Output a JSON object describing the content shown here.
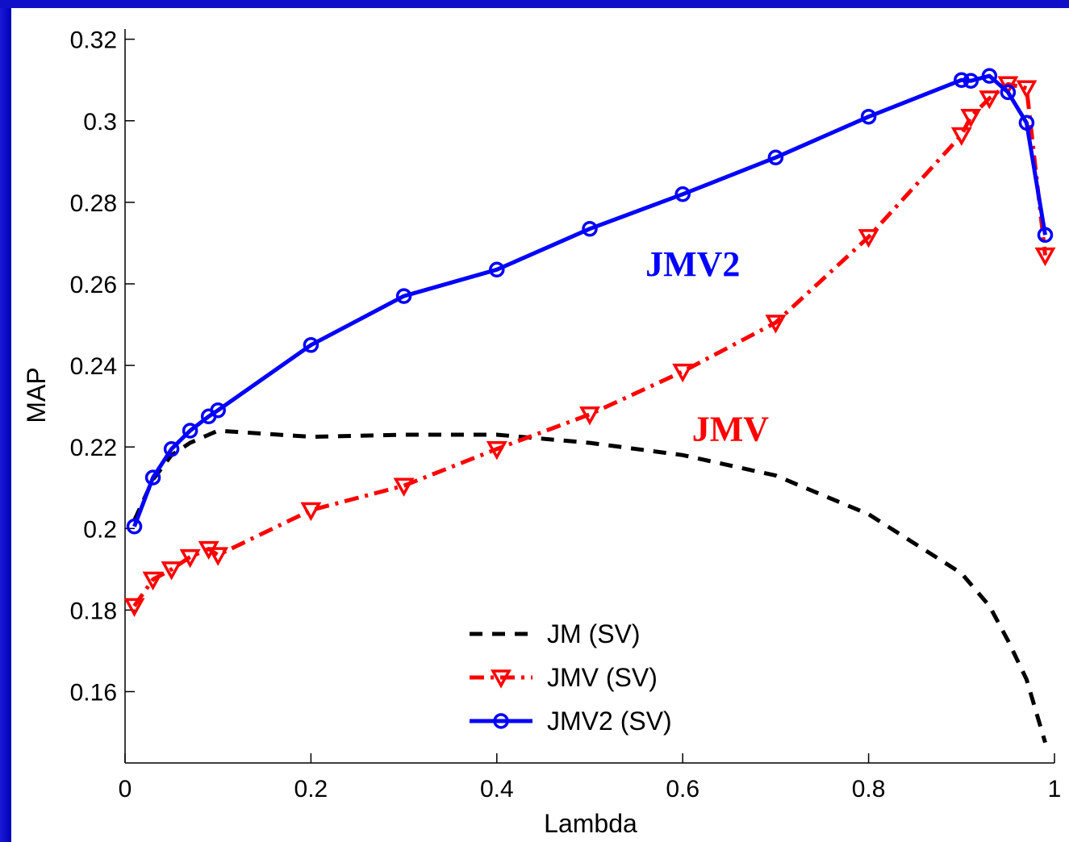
{
  "chart_data": {
    "type": "line",
    "xlabel": "Lambda",
    "ylabel": "MAP",
    "xlim": [
      0,
      1
    ],
    "ylim": [
      0.1425,
      0.3225
    ],
    "xticks": [
      0,
      0.2,
      0.4,
      0.6,
      0.8,
      1
    ],
    "xtick_labels": [
      "0",
      "0.2",
      "0.4",
      "0.6",
      "0.8",
      "1"
    ],
    "yticks": [
      0.16,
      0.18,
      0.2,
      0.22,
      0.24,
      0.26,
      0.28,
      0.3,
      0.32
    ],
    "ytick_labels": [
      "0.16",
      "0.18",
      "0.2",
      "0.22",
      "0.24",
      "0.26",
      "0.28",
      "0.3",
      "0.32"
    ],
    "grid": false,
    "legend_position": "bottom-center",
    "series": [
      {
        "name": "JM (SV)",
        "color": "#000000",
        "style": "dashed",
        "marker": "none",
        "x": [
          0.01,
          0.03,
          0.05,
          0.07,
          0.09,
          0.1,
          0.2,
          0.3,
          0.4,
          0.5,
          0.6,
          0.7,
          0.8,
          0.9,
          0.93,
          0.95,
          0.97,
          0.99
        ],
        "y": [
          0.202,
          0.212,
          0.218,
          0.221,
          0.223,
          0.224,
          0.2225,
          0.223,
          0.223,
          0.221,
          0.218,
          0.213,
          0.2035,
          0.189,
          0.181,
          0.1725,
          0.163,
          0.1475
        ]
      },
      {
        "name": "JMV (SV)",
        "color": "#ff0000",
        "style": "dashdot",
        "marker": "triangle-down",
        "x": [
          0.01,
          0.03,
          0.05,
          0.07,
          0.09,
          0.1,
          0.2,
          0.3,
          0.4,
          0.5,
          0.6,
          0.7,
          0.8,
          0.9,
          0.91,
          0.93,
          0.95,
          0.97,
          0.99
        ],
        "y": [
          0.181,
          0.1875,
          0.19,
          0.193,
          0.195,
          0.1935,
          0.2045,
          0.2105,
          0.2195,
          0.228,
          0.2385,
          0.2505,
          0.2715,
          0.2965,
          0.301,
          0.3055,
          0.309,
          0.308,
          0.267
        ]
      },
      {
        "name": "JMV2 (SV)",
        "color": "#0000ff",
        "style": "solid",
        "marker": "circle",
        "x": [
          0.01,
          0.03,
          0.05,
          0.07,
          0.09,
          0.1,
          0.2,
          0.3,
          0.4,
          0.5,
          0.6,
          0.7,
          0.8,
          0.9,
          0.91,
          0.93,
          0.95,
          0.97,
          0.99
        ],
        "y": [
          0.2005,
          0.2125,
          0.2195,
          0.224,
          0.2275,
          0.229,
          0.245,
          0.257,
          0.2635,
          0.2735,
          0.282,
          0.291,
          0.301,
          0.31,
          0.3098,
          0.311,
          0.307,
          0.2995,
          0.272
        ]
      }
    ],
    "annotations": [
      {
        "text": "JMV2",
        "x": 0.56,
        "y": 0.262,
        "color": "#0000ff"
      },
      {
        "text": "JMV",
        "x": 0.61,
        "y": 0.2215,
        "color": "#ff0000"
      }
    ]
  }
}
